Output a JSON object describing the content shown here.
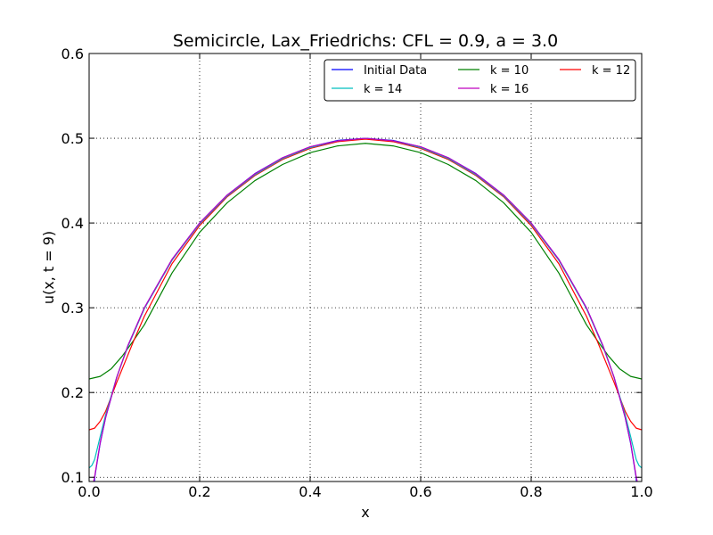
{
  "chart_data": {
    "type": "line",
    "title": "Semicircle, Lax_Friedrichs: CFL = 0.9, a = 3.0",
    "xlabel": "x",
    "ylabel": "u(x, t = 9)",
    "xlim": [
      0.0,
      1.0
    ],
    "ylim": [
      0.095,
      0.6
    ],
    "xticks": [
      "0.0",
      "0.2",
      "0.4",
      "0.6",
      "0.8",
      "1.0"
    ],
    "yticks": [
      "0.1",
      "0.2",
      "0.3",
      "0.4",
      "0.5",
      "0.6"
    ],
    "grid": true,
    "legend_position": "top-right",
    "legend_columns": 3,
    "series": [
      {
        "name": "Initial Data",
        "color": "#0000ff",
        "x": [
          0,
          0.01,
          0.02,
          0.03,
          0.05,
          0.07,
          0.1,
          0.15,
          0.2,
          0.25,
          0.3,
          0.35,
          0.4,
          0.45,
          0.5,
          0.55,
          0.6,
          0.65,
          0.7,
          0.75,
          0.8,
          0.85,
          0.9,
          0.93,
          0.95,
          0.97,
          0.98,
          0.99,
          1.0
        ],
        "y": [
          0.0,
          0.0995,
          0.14,
          0.1706,
          0.2179,
          0.2551,
          0.3,
          0.3571,
          0.4,
          0.433,
          0.4583,
          0.477,
          0.4899,
          0.4975,
          0.5,
          0.4975,
          0.4899,
          0.477,
          0.4583,
          0.433,
          0.4,
          0.3571,
          0.3,
          0.2551,
          0.2179,
          0.1706,
          0.14,
          0.0995,
          0.0
        ]
      },
      {
        "name": "k = 10",
        "color": "#008000",
        "x": [
          0,
          0.02,
          0.04,
          0.06,
          0.08,
          0.1,
          0.15,
          0.2,
          0.25,
          0.3,
          0.35,
          0.4,
          0.45,
          0.5,
          0.55,
          0.6,
          0.65,
          0.7,
          0.75,
          0.8,
          0.85,
          0.9,
          0.92,
          0.94,
          0.96,
          0.98,
          1.0
        ],
        "y": [
          0.216,
          0.219,
          0.228,
          0.243,
          0.261,
          0.28,
          0.341,
          0.389,
          0.424,
          0.45,
          0.469,
          0.483,
          0.491,
          0.494,
          0.491,
          0.483,
          0.469,
          0.45,
          0.424,
          0.389,
          0.341,
          0.28,
          0.261,
          0.243,
          0.228,
          0.219,
          0.216
        ]
      },
      {
        "name": "k = 12",
        "color": "#ff0000",
        "x": [
          0,
          0.01,
          0.02,
          0.03,
          0.04,
          0.05,
          0.06,
          0.08,
          0.1,
          0.15,
          0.2,
          0.25,
          0.3,
          0.35,
          0.4,
          0.45,
          0.5,
          0.55,
          0.6,
          0.65,
          0.7,
          0.75,
          0.8,
          0.85,
          0.9,
          0.92,
          0.94,
          0.95,
          0.96,
          0.97,
          0.98,
          0.99,
          1.0
        ],
        "y": [
          0.156,
          0.158,
          0.166,
          0.178,
          0.195,
          0.212,
          0.228,
          0.26,
          0.29,
          0.352,
          0.397,
          0.431,
          0.456,
          0.475,
          0.488,
          0.496,
          0.499,
          0.496,
          0.488,
          0.475,
          0.456,
          0.431,
          0.397,
          0.352,
          0.29,
          0.26,
          0.228,
          0.212,
          0.195,
          0.178,
          0.166,
          0.158,
          0.156
        ]
      },
      {
        "name": "k = 14",
        "color": "#00bfbf",
        "x": [
          0,
          0.005,
          0.01,
          0.02,
          0.03,
          0.05,
          0.07,
          0.1,
          0.15,
          0.2,
          0.25,
          0.3,
          0.35,
          0.4,
          0.45,
          0.5,
          0.55,
          0.6,
          0.65,
          0.7,
          0.75,
          0.8,
          0.85,
          0.9,
          0.93,
          0.95,
          0.97,
          0.98,
          0.99,
          0.995,
          1.0
        ],
        "y": [
          0.111,
          0.114,
          0.121,
          0.148,
          0.174,
          0.218,
          0.254,
          0.299,
          0.356,
          0.399,
          0.432,
          0.457,
          0.476,
          0.489,
          0.497,
          0.5,
          0.497,
          0.489,
          0.476,
          0.457,
          0.432,
          0.399,
          0.356,
          0.299,
          0.254,
          0.218,
          0.174,
          0.148,
          0.121,
          0.114,
          0.111
        ]
      },
      {
        "name": "k = 16",
        "color": "#bf00bf",
        "x": [
          0,
          0.01,
          0.02,
          0.03,
          0.05,
          0.07,
          0.1,
          0.15,
          0.2,
          0.25,
          0.3,
          0.35,
          0.4,
          0.45,
          0.5,
          0.55,
          0.6,
          0.65,
          0.7,
          0.75,
          0.8,
          0.85,
          0.9,
          0.93,
          0.95,
          0.97,
          0.98,
          0.99,
          1.0
        ],
        "y": [
          0.07,
          0.101,
          0.141,
          0.171,
          0.218,
          0.255,
          0.3,
          0.357,
          0.4,
          0.433,
          0.458,
          0.477,
          0.49,
          0.497,
          0.5,
          0.497,
          0.49,
          0.477,
          0.458,
          0.433,
          0.4,
          0.357,
          0.3,
          0.255,
          0.218,
          0.171,
          0.141,
          0.101,
          0.07
        ]
      }
    ]
  }
}
